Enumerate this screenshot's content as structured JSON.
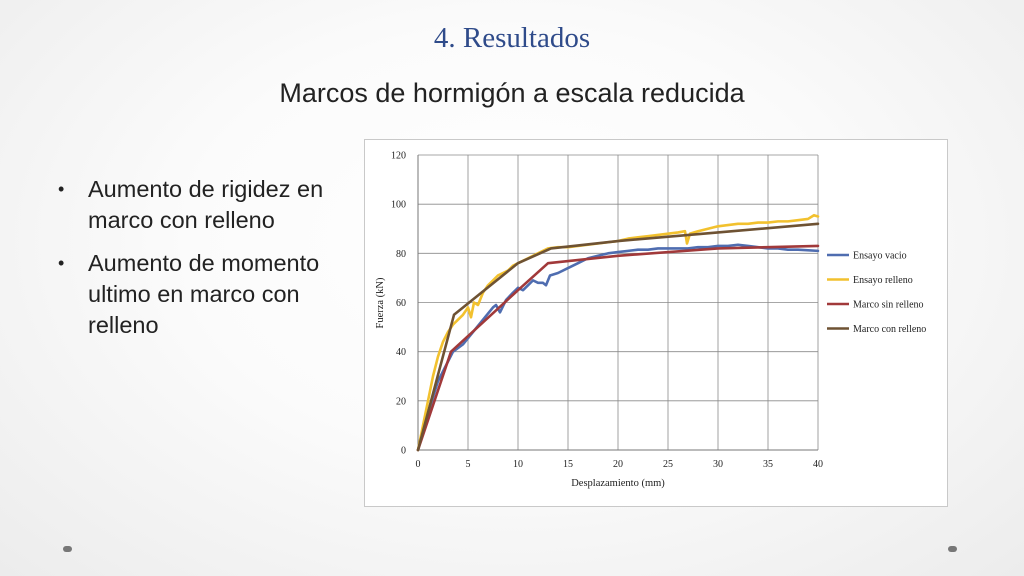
{
  "slide": {
    "title": "4. Resultados",
    "subtitle": "Marcos de hormigón a escala reducida",
    "bullets": [
      "Aumento de rigidez en marco con relleno",
      "Aumento de momento ultimo en marco con relleno"
    ],
    "bullet_glyph": "•"
  },
  "chart_data": {
    "type": "line",
    "title": "",
    "xlabel": "Desplazamiento (mm)",
    "ylabel": "Fuerza (kN)",
    "xlim": [
      0,
      40
    ],
    "ylim": [
      0,
      120
    ],
    "xticks": [
      0,
      5,
      10,
      15,
      20,
      25,
      30,
      35,
      40
    ],
    "yticks": [
      0,
      20,
      40,
      60,
      80,
      100,
      120
    ],
    "grid": true,
    "legend_position": "right",
    "series": [
      {
        "name": "Ensayo vacio",
        "color": "#4f6db0",
        "points": [
          [
            0,
            0
          ],
          [
            1,
            15
          ],
          [
            2,
            28
          ],
          [
            3,
            36
          ],
          [
            3.5,
            40
          ],
          [
            4.5,
            43
          ],
          [
            5.5,
            48
          ],
          [
            6.5,
            53
          ],
          [
            7.5,
            58
          ],
          [
            7.8,
            59
          ],
          [
            8.2,
            56
          ],
          [
            8.8,
            61
          ],
          [
            9.5,
            64
          ],
          [
            10,
            66
          ],
          [
            10.5,
            65
          ],
          [
            11,
            67
          ],
          [
            11.5,
            69
          ],
          [
            12,
            68
          ],
          [
            12.5,
            68
          ],
          [
            12.8,
            67
          ],
          [
            13.2,
            71
          ],
          [
            14,
            72
          ],
          [
            15,
            74
          ],
          [
            16,
            76
          ],
          [
            17,
            78
          ],
          [
            18,
            79
          ],
          [
            19,
            80
          ],
          [
            20,
            80.5
          ],
          [
            21,
            81
          ],
          [
            22,
            81.5
          ],
          [
            23,
            81.5
          ],
          [
            24,
            82
          ],
          [
            25,
            82
          ],
          [
            26,
            82
          ],
          [
            27,
            82
          ],
          [
            28,
            82.5
          ],
          [
            29,
            82.5
          ],
          [
            30,
            83
          ],
          [
            31,
            83
          ],
          [
            32,
            83.5
          ],
          [
            33,
            83
          ],
          [
            34,
            82.5
          ],
          [
            35,
            82
          ],
          [
            36,
            82
          ],
          [
            37,
            81.5
          ],
          [
            38,
            81.5
          ],
          [
            40,
            81
          ]
        ]
      },
      {
        "name": "Ensayo relleno",
        "color": "#f2c12e",
        "points": [
          [
            0,
            0
          ],
          [
            0.5,
            10
          ],
          [
            1,
            20
          ],
          [
            1.5,
            30
          ],
          [
            2,
            38
          ],
          [
            2.5,
            44
          ],
          [
            3,
            48
          ],
          [
            3.5,
            51
          ],
          [
            4,
            53
          ],
          [
            4.5,
            55
          ],
          [
            5,
            58
          ],
          [
            5.3,
            54
          ],
          [
            5.6,
            60
          ],
          [
            6,
            59
          ],
          [
            6.5,
            64
          ],
          [
            7,
            67
          ],
          [
            7.5,
            69
          ],
          [
            8,
            71
          ],
          [
            8.5,
            72
          ],
          [
            9,
            73
          ],
          [
            9.5,
            75
          ],
          [
            10,
            76
          ],
          [
            11,
            78
          ],
          [
            12,
            80
          ],
          [
            13,
            82
          ],
          [
            14,
            82.5
          ],
          [
            15,
            82.5
          ],
          [
            16,
            83
          ],
          [
            17,
            83.5
          ],
          [
            18,
            84
          ],
          [
            19,
            84.5
          ],
          [
            20,
            85
          ],
          [
            21,
            86
          ],
          [
            22,
            86.5
          ],
          [
            23,
            87
          ],
          [
            24,
            87.5
          ],
          [
            25,
            88
          ],
          [
            26,
            88.5
          ],
          [
            26.7,
            89
          ],
          [
            26.9,
            84
          ],
          [
            27.2,
            88
          ],
          [
            28,
            89
          ],
          [
            29,
            90
          ],
          [
            30,
            91
          ],
          [
            31,
            91.5
          ],
          [
            32,
            92
          ],
          [
            33,
            92
          ],
          [
            34,
            92.5
          ],
          [
            35,
            92.5
          ],
          [
            36,
            93
          ],
          [
            37,
            93
          ],
          [
            38,
            93.5
          ],
          [
            39,
            94
          ],
          [
            39.6,
            95.5
          ],
          [
            40,
            95
          ]
        ]
      },
      {
        "name": "Marco sin relleno",
        "color": "#a1393a",
        "points": [
          [
            0,
            0
          ],
          [
            3.3,
            40
          ],
          [
            10,
            65
          ],
          [
            13,
            76
          ],
          [
            20,
            79
          ],
          [
            30,
            82
          ],
          [
            40,
            83
          ]
        ]
      },
      {
        "name": "Marco con relleno",
        "color": "#6e5233",
        "points": [
          [
            0,
            0
          ],
          [
            3.6,
            55
          ],
          [
            10,
            76
          ],
          [
            13.3,
            82
          ],
          [
            20,
            85
          ],
          [
            30,
            88.5
          ],
          [
            40,
            92
          ]
        ]
      }
    ]
  }
}
